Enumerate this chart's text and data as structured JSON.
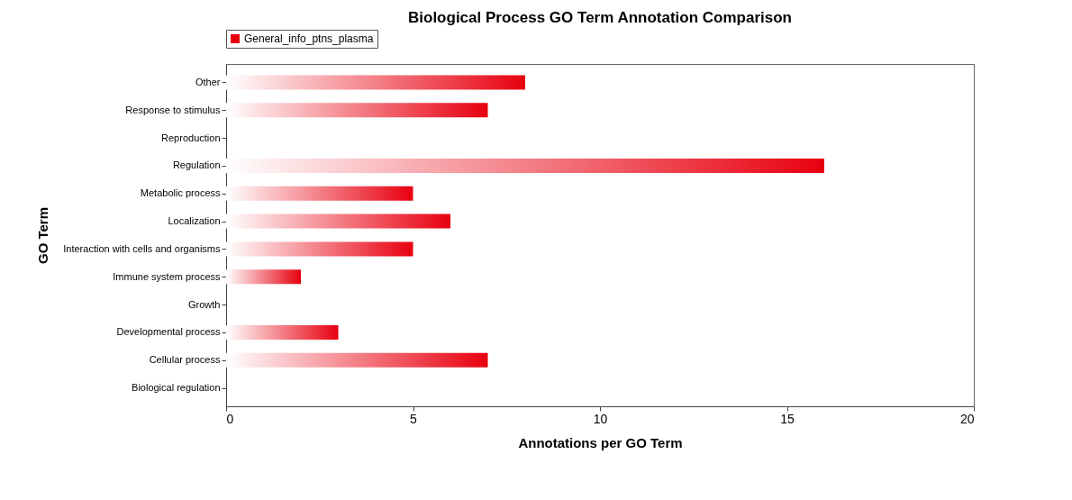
{
  "chart_data": {
    "type": "bar",
    "orientation": "horizontal",
    "title": "Biological Process GO Term Annotation Comparison",
    "xlabel": "Annotations per GO Term",
    "ylabel": "GO Term",
    "categories": [
      "Other",
      "Response to stimulus",
      "Reproduction",
      "Regulation",
      "Metabolic process",
      "Localization",
      "Interaction with cells and organisms",
      "Immune system process",
      "Growth",
      "Developmental process",
      "Cellular process",
      "Biological regulation"
    ],
    "series": [
      {
        "name": "General_info_ptns_plasma",
        "color": "#e8000f",
        "values": [
          8,
          7,
          0,
          16,
          5,
          6,
          5,
          2,
          0,
          3,
          7,
          0
        ]
      }
    ],
    "xlim": [
      0,
      20
    ],
    "xticks": [
      0,
      5,
      10,
      15,
      20
    ],
    "grid": false,
    "legend": "top left"
  }
}
